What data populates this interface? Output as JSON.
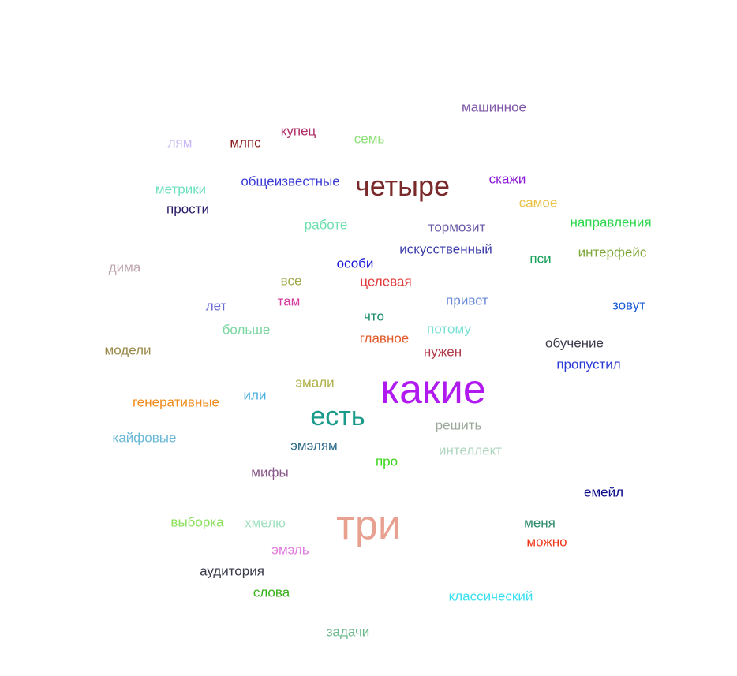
{
  "words": [
    {
      "text": "машинное",
      "color": "#7e57a8"
    },
    {
      "text": "лям",
      "color": "#c7b7f2"
    },
    {
      "text": "млпс",
      "color": "#8b1a1a"
    },
    {
      "text": "купец",
      "color": "#b0306a"
    },
    {
      "text": "семь",
      "color": "#8fe07a"
    },
    {
      "text": "метрики",
      "color": "#6fe0c0"
    },
    {
      "text": "общеизвестные",
      "color": "#3a3ad6"
    },
    {
      "text": "четыре",
      "color": "#7a2a2a"
    },
    {
      "text": "скажи",
      "color": "#8a1ad6"
    },
    {
      "text": "самое",
      "color": "#e8c24a"
    },
    {
      "text": "прости",
      "color": "#2a1a6a"
    },
    {
      "text": "работе",
      "color": "#6fe0b0"
    },
    {
      "text": "тормозит",
      "color": "#6a5aa8"
    },
    {
      "text": "направления",
      "color": "#2ad64a"
    },
    {
      "text": "искусственный",
      "color": "#3a3aa8"
    },
    {
      "text": "особи",
      "color": "#1a1ad6"
    },
    {
      "text": "пси",
      "color": "#1aa05a"
    },
    {
      "text": "интерфейс",
      "color": "#7ea83a"
    },
    {
      "text": "дима",
      "color": "#c0a8b0"
    },
    {
      "text": "все",
      "color": "#a0a84a"
    },
    {
      "text": "целевая",
      "color": "#e03a3a"
    },
    {
      "text": "лет",
      "color": "#6a6ad6"
    },
    {
      "text": "там",
      "color": "#d63a9a"
    },
    {
      "text": "привет",
      "color": "#6a8ad6"
    },
    {
      "text": "зовут",
      "color": "#1a5ad6"
    },
    {
      "text": "что",
      "color": "#1a8a6a"
    },
    {
      "text": "больше",
      "color": "#7ad6a0"
    },
    {
      "text": "потому",
      "color": "#7ae0d6"
    },
    {
      "text": "модели",
      "color": "#9a8a4a"
    },
    {
      "text": "главное",
      "color": "#e05a2a"
    },
    {
      "text": "нужен",
      "color": "#b03a4a"
    },
    {
      "text": "обучение",
      "color": "#3a3a4a"
    },
    {
      "text": "пропустил",
      "color": "#2a3ad6"
    },
    {
      "text": "эмали",
      "color": "#b0b04a"
    },
    {
      "text": "какие",
      "color": "#b01af0"
    },
    {
      "text": "генеративные",
      "color": "#f08a1a"
    },
    {
      "text": "или",
      "color": "#4ab0e0"
    },
    {
      "text": "есть",
      "color": "#1a9a8a"
    },
    {
      "text": "решить",
      "color": "#9aa89a"
    },
    {
      "text": "кайфовые",
      "color": "#6ab8d6"
    },
    {
      "text": "эмэлям",
      "color": "#2a6a8a"
    },
    {
      "text": "интеллект",
      "color": "#b0d6c0"
    },
    {
      "text": "про",
      "color": "#3ad61a"
    },
    {
      "text": "мифы",
      "color": "#8a5a8a"
    },
    {
      "text": "емейл",
      "color": "#0a0a8a"
    },
    {
      "text": "выборка",
      "color": "#8ae05a"
    },
    {
      "text": "хмелю",
      "color": "#a0e0c0"
    },
    {
      "text": "три",
      "color": "#e8a090"
    },
    {
      "text": "меня",
      "color": "#2a8a6a"
    },
    {
      "text": "можно",
      "color": "#f03a1a"
    },
    {
      "text": "эмэль",
      "color": "#e07ae0"
    },
    {
      "text": "аудитория",
      "color": "#3a3a4a"
    },
    {
      "text": "слова",
      "color": "#3ab01a"
    },
    {
      "text": "классический",
      "color": "#3ae0f0"
    },
    {
      "text": "задачи",
      "color": "#6ab88a"
    }
  ]
}
